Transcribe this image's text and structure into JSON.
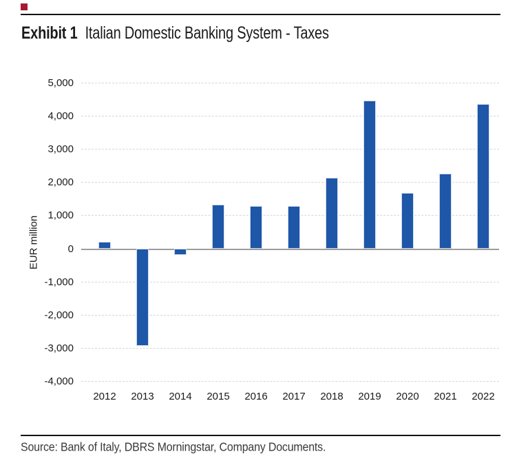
{
  "exhibit": {
    "label": "Exhibit 1",
    "title": "Italian Domestic Banking System - Taxes"
  },
  "source_note": "Source: Bank of Italy, DBRS Morningstar, Company Documents.",
  "colors": {
    "bar": "#1E56A8",
    "bar_edge": "#cfdcee",
    "gridline": "#d6d6d6",
    "zero_line": "#9d9d9d",
    "rule": "#111111",
    "accent_square": "#A6192E",
    "text": "#1a1a1a",
    "source_text": "#3a3a3a"
  },
  "chart_data": {
    "type": "bar",
    "title": "Italian Domestic Banking System - Taxes",
    "xlabel": "",
    "ylabel": "EUR million",
    "categories": [
      "2012",
      "2013",
      "2014",
      "2015",
      "2016",
      "2017",
      "2018",
      "2019",
      "2020",
      "2021",
      "2022"
    ],
    "values": [
      200,
      -2950,
      -200,
      1320,
      1270,
      1270,
      2140,
      4450,
      1680,
      2250,
      4350
    ],
    "ylim": [
      -4000,
      5000
    ],
    "ytick_interval": 1000,
    "ytick_labels_top_to_bottom": [
      "5,000",
      "4,000",
      "3,000",
      "2,000",
      "1,000",
      "0",
      "-1,000",
      "-2,000",
      "-3,000",
      "-4,000"
    ],
    "grid": "horizontal-dashed",
    "legend": "none",
    "bar_color": "#1E56A8"
  }
}
